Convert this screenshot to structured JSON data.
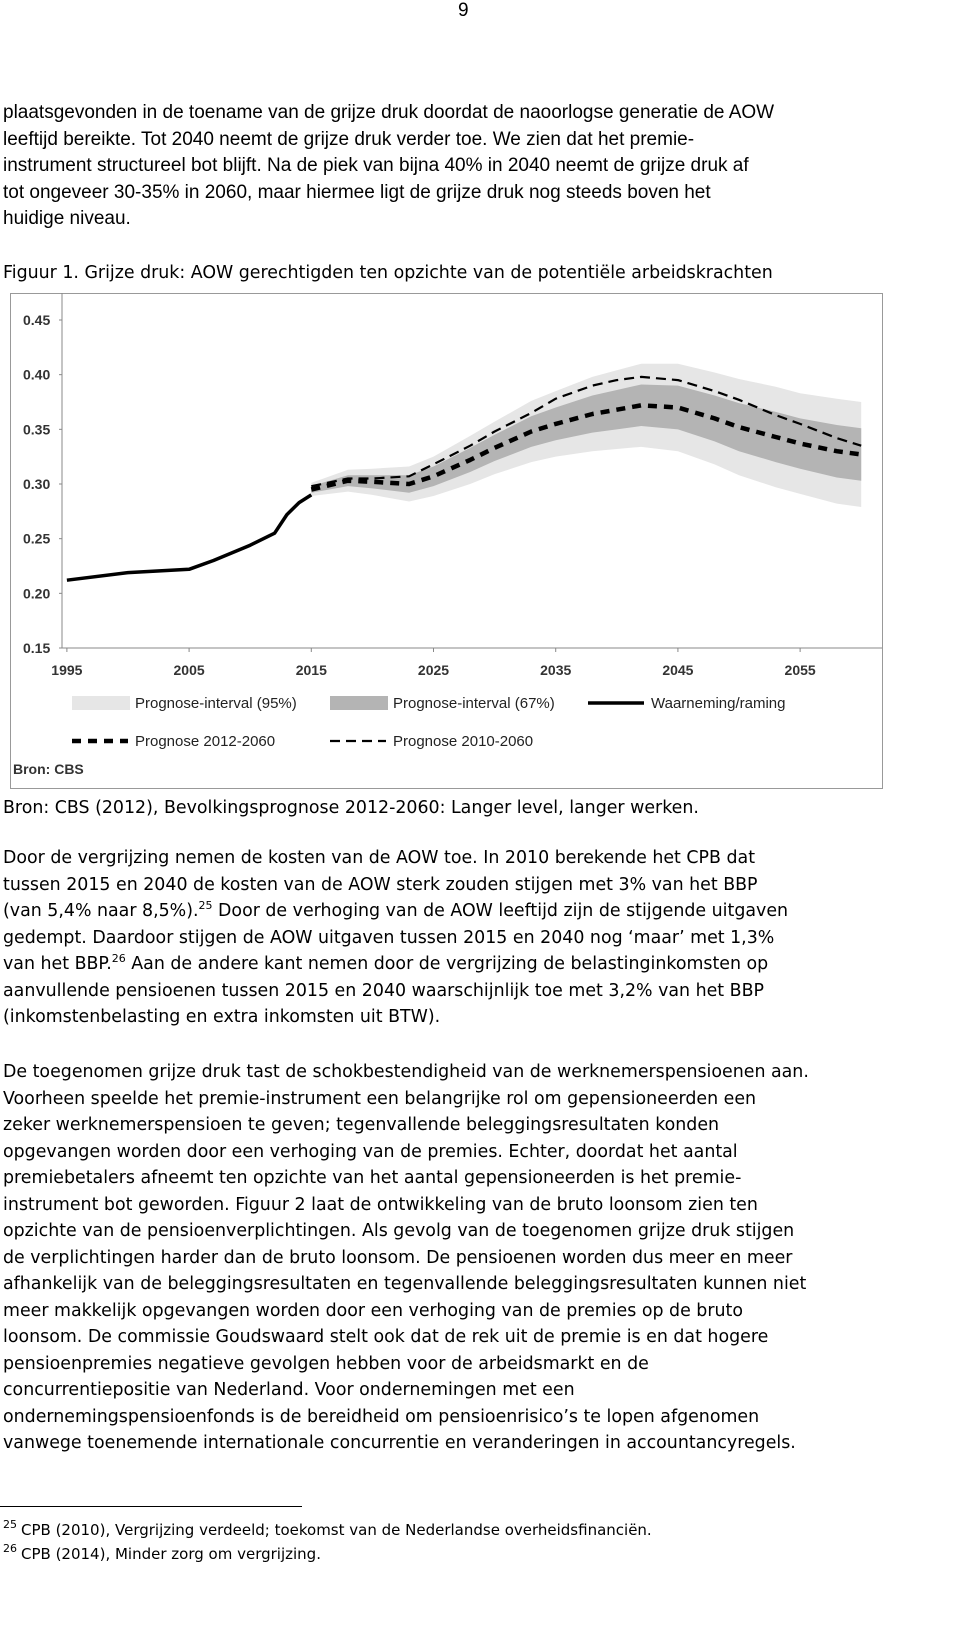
{
  "page_number": "9",
  "paragraphs": [
    [
      "plaatsgevonden in de toename van de grijze druk doordat de naoorlogse generatie de AOW",
      "leeftijd bereikte. Tot 2040 neemt de grijze druk verder toe. We zien dat het premie-",
      "instrument structureel bot blijft. Na de piek van bijna 40% in 2040 neemt de grijze druk af",
      "tot ongeveer 30-35% in 2060, maar hiermee ligt de grijze druk nog steeds boven het",
      "huidige niveau."
    ],
    [
      "Door de vergrijzing nemen de kosten van de AOW toe. In 2010 berekende het CPB dat",
      "tussen 2015 en 2040 de kosten van de AOW sterk zouden stijgen met 3% van het BBP",
      [
        "(van 5,4% naar 8,5%).",
        "25",
        " Door de verhoging van de AOW leeftijd zijn de stijgende uitgaven"
      ],
      "gedempt. Daardoor stijgen de AOW uitgaven tussen 2015 en 2040 nog ‘maar’ met 1,3%",
      [
        "van het BBP.",
        "26",
        " Aan de andere kant nemen door de vergrijzing de belastinginkomsten op"
      ],
      "aanvullende pensioenen tussen 2015 en 2040 waarschijnlijk toe met 3,2% van het BBP",
      "(inkomstenbelasting en extra inkomsten uit BTW)."
    ],
    [
      "De toegenomen grijze druk tast de schokbestendigheid van de werknemerspensioenen aan.",
      "Voorheen speelde het premie-instrument een belangrijke rol om gepensioneerden een",
      "zeker werknemerspensioen te geven; tegenvallende beleggingsresultaten konden",
      "opgevangen worden door een verhoging van de premies. Echter, doordat het aantal",
      "premiebetalers afneemt ten opzichte van het aantal gepensioneerden is het premie-",
      "instrument bot geworden. Figuur 2 laat de ontwikkeling van de bruto loonsom zien ten",
      "opzichte van de pensioenverplichtingen. Als gevolg van de toegenomen grijze druk stijgen",
      "de verplichtingen harder dan de bruto loonsom. De pensioenen worden dus meer en meer",
      "afhankelijk van de beleggingsresultaten en tegenvallende beleggingsresultaten kunnen niet",
      "meer makkelijk opgevangen worden door een verhoging van de premies op de bruto",
      "loonsom. De commissie Goudswaard stelt ook dat de rek uit de premie is en dat hogere",
      "pensioenpremies negatieve gevolgen hebben voor de arbeidsmarkt en de",
      "concurrentiepositie van Nederland. Voor ondernemingen met een",
      "ondernemingspensioenfonds is de bereidheid om pensioenrisico’s te lopen afgenomen",
      "vanwege toenemende internationale concurrentie en veranderingen in accountancyregels."
    ]
  ],
  "figure_caption": "Figuur 1. Grijze druk: AOW gerechtigden ten opzichte van de potentiële arbeidskrachten",
  "source_note": "Bron: CBS (2012), Bevolkingsprognose 2012-2060: Langer level, langer werken.",
  "footnotes": [
    {
      "number": "25",
      "text": "CPB (2010), Vergrijzing verdeeld; toekomst van de Nederlandse overheidsfinanciën."
    },
    {
      "number": "26",
      "text": "CPB (2014), Minder zorg om vergrijzing."
    }
  ],
  "chart_data": {
    "type": "line",
    "source_label": "Bron: CBS",
    "x": [
      1995,
      2000,
      2005,
      2007,
      2010,
      2012,
      2013,
      2014,
      2015,
      2018,
      2020,
      2023,
      2025,
      2028,
      2030,
      2033,
      2035,
      2038,
      2040,
      2042,
      2045,
      2048,
      2050,
      2053,
      2055,
      2058,
      2060
    ],
    "xlim": [
      1994.6,
      2061.7
    ],
    "xticks": [
      1995,
      2005,
      2015,
      2025,
      2035,
      2045,
      2055
    ],
    "ylim": [
      0.15,
      0.45
    ],
    "yticks": [
      0.15,
      {
        "value": 0.2,
        "label": "0.20"
      },
      0.25,
      {
        "value": 0.3,
        "label": "0.30"
      },
      0.35,
      {
        "value": 0.4,
        "label": "0.40"
      },
      0.45
    ],
    "grid": false,
    "series": [
      {
        "name": "Prognose-interval (95%)",
        "style": "band",
        "color": "#e6e6e6",
        "lower": [
          null,
          null,
          null,
          null,
          null,
          null,
          null,
          null,
          0.289,
          0.293,
          0.29,
          0.284,
          0.289,
          0.3,
          0.309,
          0.32,
          0.325,
          0.33,
          0.332,
          0.334,
          0.33,
          0.318,
          0.308,
          0.297,
          0.291,
          0.282,
          0.279
        ],
        "upper": [
          null,
          null,
          null,
          null,
          null,
          null,
          null,
          null,
          0.301,
          0.313,
          0.314,
          0.316,
          0.325,
          0.344,
          0.357,
          0.376,
          0.385,
          0.398,
          0.404,
          0.41,
          0.41,
          0.402,
          0.396,
          0.389,
          0.383,
          0.378,
          0.375
        ]
      },
      {
        "name": "Prognose-interval (67%)",
        "style": "band",
        "color": "#b4b4b4",
        "lower": [
          null,
          null,
          null,
          null,
          null,
          null,
          null,
          null,
          0.292,
          0.298,
          0.296,
          0.292,
          0.298,
          0.311,
          0.321,
          0.334,
          0.34,
          0.347,
          0.35,
          0.353,
          0.35,
          0.339,
          0.33,
          0.32,
          0.314,
          0.306,
          0.303
        ],
        "upper": [
          null,
          null,
          null,
          null,
          null,
          null,
          null,
          null,
          0.298,
          0.308,
          0.308,
          0.308,
          0.316,
          0.333,
          0.345,
          0.362,
          0.37,
          0.381,
          0.386,
          0.391,
          0.39,
          0.381,
          0.374,
          0.366,
          0.36,
          0.354,
          0.351
        ]
      },
      {
        "name": "Waarneming/raming",
        "style": "solid",
        "color": "#000000",
        "values": [
          0.212,
          0.219,
          0.222,
          0.23,
          0.244,
          0.255,
          0.272,
          0.283,
          0.29,
          null,
          null,
          null,
          null,
          null,
          null,
          null,
          null,
          null,
          null,
          null,
          null,
          null,
          null,
          null,
          null,
          null,
          null
        ]
      },
      {
        "name": "Prognose 2012-2060",
        "style": "dash-thick",
        "color": "#000000",
        "values": [
          null,
          null,
          null,
          null,
          null,
          null,
          null,
          null,
          0.295,
          0.303,
          0.302,
          0.3,
          0.307,
          0.322,
          0.333,
          0.348,
          0.355,
          0.364,
          0.368,
          0.372,
          0.37,
          0.36,
          0.352,
          0.343,
          0.337,
          0.33,
          0.327
        ]
      },
      {
        "name": "Prognose 2010-2060",
        "style": "dash-thin",
        "color": "#000000",
        "values": [
          null,
          null,
          null,
          null,
          null,
          null,
          null,
          null,
          0.298,
          0.305,
          0.305,
          0.307,
          0.318,
          0.335,
          0.348,
          0.365,
          0.378,
          0.39,
          0.395,
          0.398,
          0.395,
          0.385,
          0.377,
          0.363,
          0.355,
          0.342,
          0.335
        ]
      }
    ]
  }
}
